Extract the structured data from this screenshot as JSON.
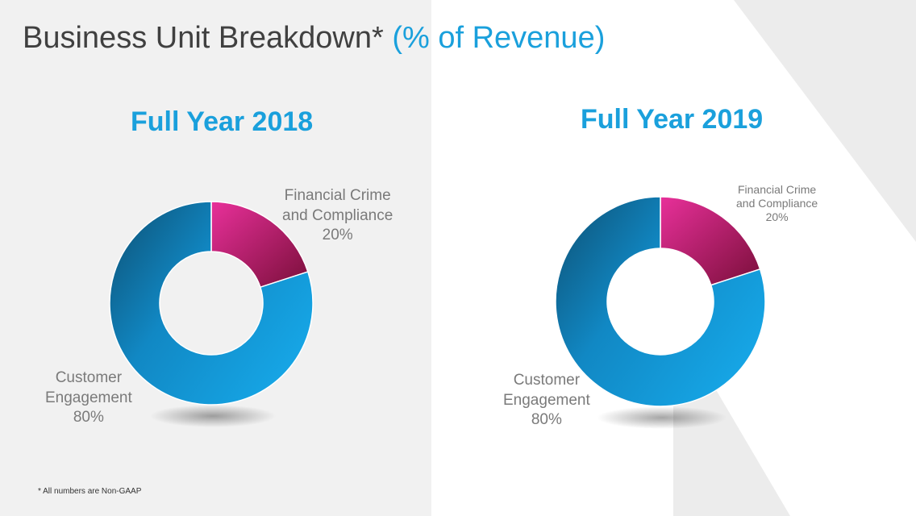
{
  "slide": {
    "title_main": "Business Unit Breakdown*",
    "title_accent": "(% of Revenue)",
    "footnote": "* All numbers are Non-GAAP"
  },
  "colors": {
    "accent": "#1aa0dc",
    "financial_crime": "#e0288f",
    "customer_engagement": "#1aa0dc"
  },
  "chart_data": [
    {
      "type": "pie",
      "title": "Full Year 2018",
      "donut": true,
      "slices": [
        {
          "label_lines": [
            "Financial Crime",
            "and Compliance",
            "20%"
          ],
          "value": 20
        },
        {
          "label_lines": [
            "Customer",
            "Engagement",
            "80%"
          ],
          "value": 80
        }
      ]
    },
    {
      "type": "pie",
      "title": "Full Year 2019",
      "donut": true,
      "slices": [
        {
          "label_lines": [
            "Financial Crime",
            "and Compliance",
            "20%"
          ],
          "value": 20
        },
        {
          "label_lines": [
            "Customer",
            "Engagement",
            "80%"
          ],
          "value": 80
        }
      ]
    }
  ]
}
